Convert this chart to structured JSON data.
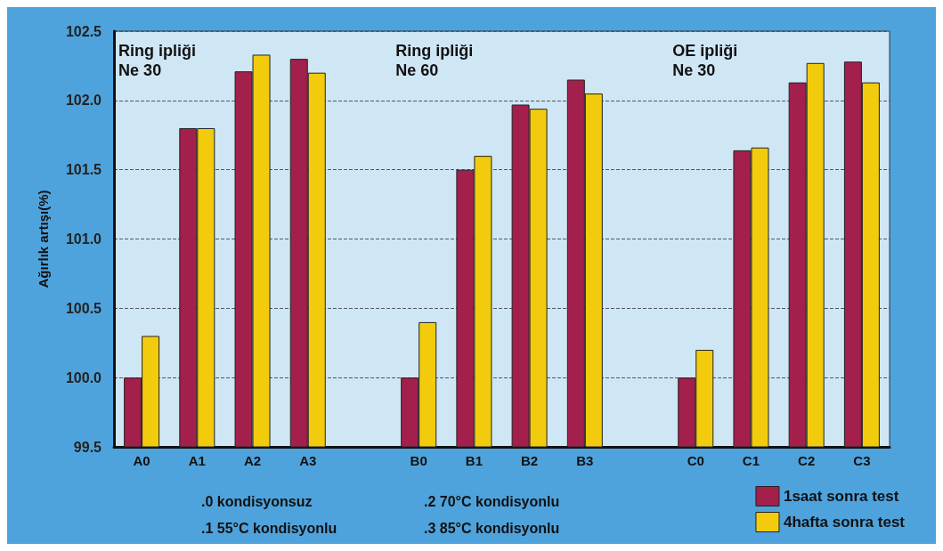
{
  "chart_data": {
    "type": "bar",
    "ylabel": "Ağırlık artışı(%)",
    "categories": [
      "A0",
      "A1",
      "A2",
      "A3",
      null,
      "B0",
      "B1",
      "B2",
      "B3",
      null,
      "C0",
      "C1",
      "C2",
      "C3"
    ],
    "series": [
      {
        "name": "1saat sonra test",
        "color": "#a3204c",
        "values": [
          100.0,
          101.8,
          102.21,
          102.3,
          null,
          100.0,
          101.5,
          101.97,
          102.15,
          null,
          100.0,
          101.64,
          102.13,
          102.28
        ]
      },
      {
        "name": "4hafta sonra test",
        "color": "#f2cc0c",
        "values": [
          100.3,
          101.8,
          102.33,
          102.2,
          null,
          100.4,
          101.6,
          101.94,
          102.05,
          null,
          100.2,
          101.66,
          102.27,
          102.13
        ]
      }
    ],
    "ylim": [
      99.5,
      102.5
    ],
    "yticks": [
      {
        "value": 99.5,
        "label": "99.5"
      },
      {
        "value": 100,
        "label": "100.0"
      },
      {
        "value": 100.5,
        "label": "100.5"
      },
      {
        "value": 101,
        "label": "101.0"
      },
      {
        "value": 101.5,
        "label": "101.5"
      },
      {
        "value": 102,
        "label": "102.0"
      },
      {
        "value": 102.5,
        "label": "102.5"
      }
    ],
    "grid": "y",
    "legend": "bottom right",
    "annotations": [
      "Ring ipliği\nNe 30",
      "Ring ipliği\nNe 60",
      "OE ipliği\nNe 30",
      ".0 kondisyonsuz",
      ".1 55°C kondisyonlu",
      ".2 70°C kondisyonlu",
      ".3 85°C kondisyonlu"
    ]
  }
}
